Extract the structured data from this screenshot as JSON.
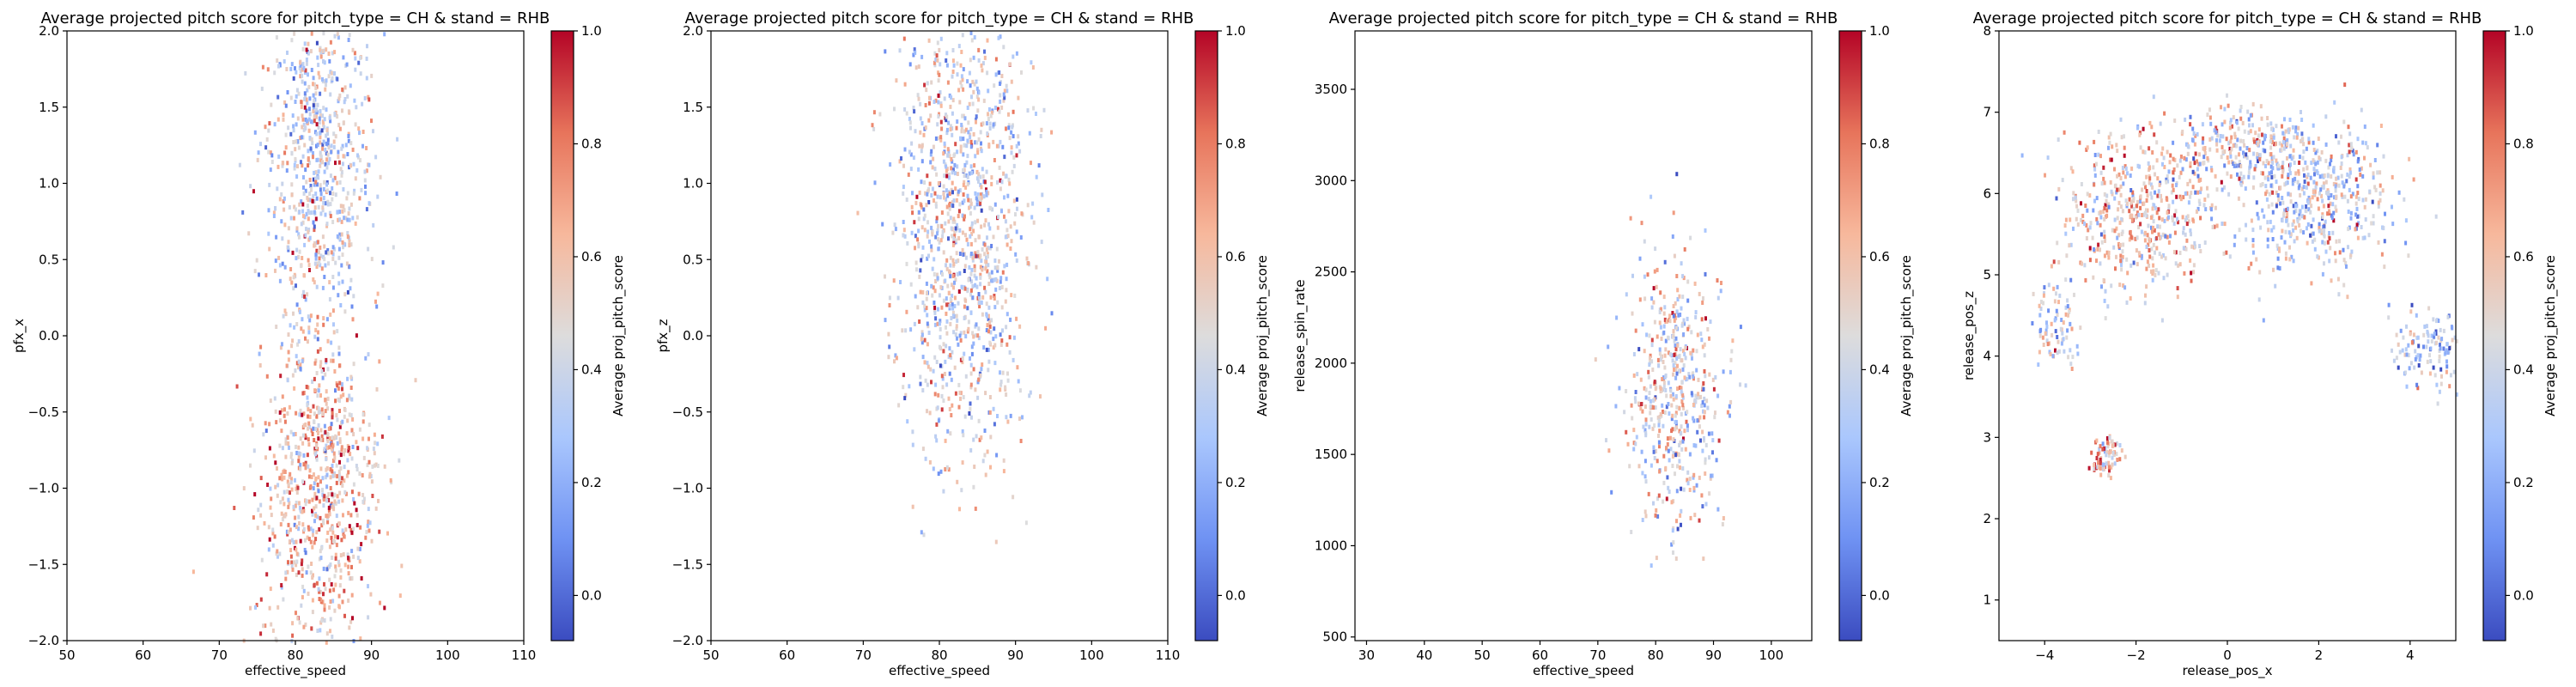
{
  "colors": {
    "cmap": [
      "#3b4cc0",
      "#6f92f3",
      "#aac7fd",
      "#dddcdc",
      "#f7b89c",
      "#e7745b",
      "#b40426"
    ]
  },
  "chart_data": [
    {
      "type": "heatmap",
      "title": "Average projected pitch score for pitch_type = CH & stand = RHB",
      "xlabel": "effective_speed",
      "ylabel": "pfx_x",
      "xlim": [
        50,
        110
      ],
      "ylim": [
        -2.0,
        2.0
      ],
      "xticks": [
        50,
        60,
        70,
        80,
        90,
        100,
        110
      ],
      "xtick_labels": [
        "50",
        "60",
        "70",
        "80",
        "90",
        "100",
        "110"
      ],
      "yticks": [
        -2.0,
        -1.5,
        -1.0,
        -0.5,
        0.0,
        0.5,
        1.0,
        1.5,
        2.0
      ],
      "ytick_labels": [
        "−2.0",
        "−1.5",
        "−1.0",
        "−0.5",
        "0.0",
        "0.5",
        "1.0",
        "1.5",
        "2.0"
      ],
      "colorbar": {
        "label": "Average proj_pitch_score",
        "range": [
          -0.08,
          1.0
        ],
        "ticks": [
          0.0,
          0.2,
          0.4,
          0.6,
          0.8,
          1.0
        ],
        "tick_labels": [
          "0.0",
          "0.2",
          "0.4",
          "0.6",
          "0.8",
          "1.0"
        ]
      },
      "clusters": [
        {
          "cx": 83,
          "cy": 1.15,
          "sx": 3.6,
          "sy": 0.55,
          "value": 0.42
        },
        {
          "cx": 83,
          "cy": -1.05,
          "sx": 4.0,
          "sy": 0.55,
          "value": 0.6
        }
      ]
    },
    {
      "type": "heatmap",
      "title": "Average projected pitch score for pitch_type = CH & stand = RHB",
      "xlabel": "effective_speed",
      "ylabel": "pfx_z",
      "xlim": [
        50,
        110
      ],
      "ylim": [
        -2.0,
        2.0
      ],
      "xticks": [
        50,
        60,
        70,
        80,
        90,
        100,
        110
      ],
      "xtick_labels": [
        "50",
        "60",
        "70",
        "80",
        "90",
        "100",
        "110"
      ],
      "yticks": [
        -2.0,
        -1.5,
        -1.0,
        -0.5,
        0.0,
        0.5,
        1.0,
        1.5,
        2.0
      ],
      "ytick_labels": [
        "−2.0",
        "−1.5",
        "−1.0",
        "−0.5",
        "0.0",
        "0.5",
        "1.0",
        "1.5",
        "2.0"
      ],
      "colorbar": {
        "label": "Average proj_pitch_score",
        "range": [
          -0.08,
          1.0
        ],
        "ticks": [
          0.0,
          0.2,
          0.4,
          0.6,
          0.8,
          1.0
        ],
        "tick_labels": [
          "0.0",
          "0.2",
          "0.4",
          "0.6",
          "0.8",
          "1.0"
        ]
      },
      "clusters": [
        {
          "cx": 83,
          "cy": 0.75,
          "sx": 4.2,
          "sy": 0.75,
          "value": 0.45
        }
      ]
    },
    {
      "type": "heatmap",
      "title": "Average projected pitch score for pitch_type = CH & stand = RHB",
      "xlabel": "effective_speed",
      "ylabel": "release_spin_rate",
      "xlim": [
        28,
        107
      ],
      "ylim": [
        480,
        3820
      ],
      "xticks": [
        30,
        40,
        50,
        60,
        70,
        80,
        90,
        100
      ],
      "xtick_labels": [
        "30",
        "40",
        "50",
        "60",
        "70",
        "80",
        "90",
        "100"
      ],
      "yticks": [
        500,
        1000,
        1500,
        2000,
        2500,
        3000,
        3500
      ],
      "ytick_labels": [
        "500",
        "1000",
        "1500",
        "2000",
        "2500",
        "3000",
        "3500"
      ],
      "colorbar": {
        "label": "Average proj_pitch_score",
        "range": [
          -0.08,
          1.0
        ],
        "ticks": [
          0.0,
          0.2,
          0.4,
          0.6,
          0.8,
          1.0
        ],
        "tick_labels": [
          "0.0",
          "0.2",
          "0.4",
          "0.6",
          "0.8",
          "1.0"
        ]
      },
      "clusters": [
        {
          "cx": 83,
          "cy": 1850,
          "sx": 4.0,
          "sy": 380,
          "value": 0.45
        }
      ]
    },
    {
      "type": "heatmap",
      "title": "Average projected pitch score for pitch_type = CH & stand = RHB",
      "xlabel": "release_pos_x",
      "ylabel": "release_pos_z",
      "xlim": [
        -5.0,
        5.0
      ],
      "ylim": [
        0.5,
        8.0
      ],
      "xticks": [
        -4,
        -2,
        0,
        2,
        4
      ],
      "xtick_labels": [
        "−4",
        "−2",
        "0",
        "2",
        "4"
      ],
      "yticks": [
        1,
        2,
        3,
        4,
        5,
        6,
        7,
        8
      ],
      "ytick_labels": [
        "1",
        "2",
        "3",
        "4",
        "5",
        "6",
        "7",
        "8"
      ],
      "colorbar": {
        "label": "Average proj_pitch_score",
        "range": [
          -0.08,
          1.0
        ],
        "ticks": [
          0.0,
          0.2,
          0.4,
          0.6,
          0.8,
          1.0
        ],
        "tick_labels": [
          "0.0",
          "0.2",
          "0.4",
          "0.6",
          "0.8",
          "1.0"
        ]
      },
      "clusters": [
        {
          "cx": -2.0,
          "cy": 5.8,
          "sx": 0.85,
          "sy": 0.5,
          "value": 0.55
        },
        {
          "cx": 1.9,
          "cy": 5.9,
          "sx": 0.9,
          "sy": 0.45,
          "value": 0.38
        },
        {
          "cx": 0.3,
          "cy": 6.6,
          "sx": 0.8,
          "sy": 0.25,
          "value": 0.45
        },
        {
          "cx": 4.5,
          "cy": 4.1,
          "sx": 0.45,
          "sy": 0.25,
          "value": 0.35
        },
        {
          "cx": -3.8,
          "cy": 4.4,
          "sx": 0.25,
          "sy": 0.25,
          "value": 0.4
        },
        {
          "cx": -2.7,
          "cy": 2.8,
          "sx": 0.15,
          "sy": 0.12,
          "value": 0.65
        }
      ]
    }
  ]
}
